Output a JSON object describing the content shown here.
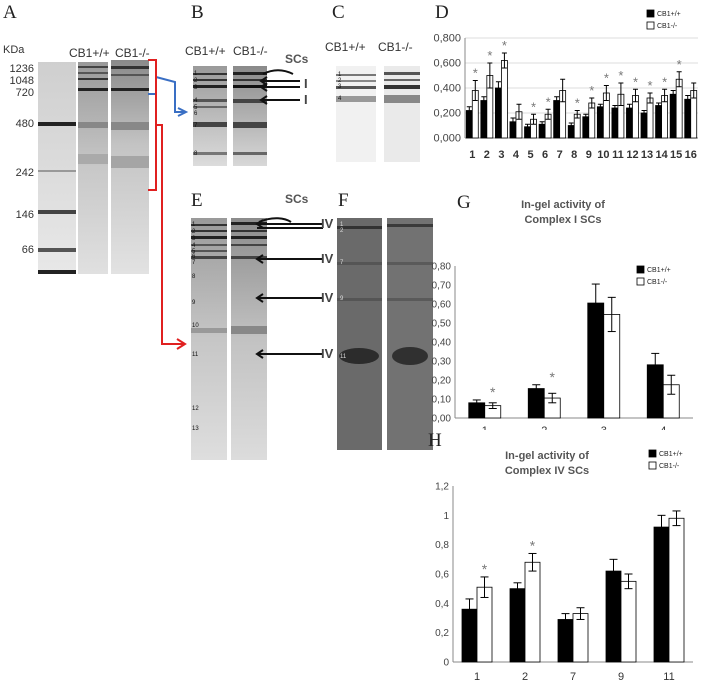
{
  "panels": {
    "A": {
      "label": "A",
      "unit": "KDa",
      "markers": [
        "1236",
        "1048",
        "720",
        "480",
        "242",
        "146",
        "66"
      ],
      "lane_headers": [
        "CB1+/+",
        "CB1-/-"
      ]
    },
    "B": {
      "label": "B",
      "lane_headers": [
        "CB1+/+",
        "CB1-/-"
      ],
      "scs_label": "SCs",
      "arrow_labels": [
        "I",
        "I"
      ],
      "band_numbers": [
        "1",
        "2",
        "3",
        "4",
        "5",
        "6",
        "7",
        "8"
      ]
    },
    "C": {
      "label": "C",
      "lane_headers": [
        "CB1+/+",
        "CB1-/-"
      ],
      "band_numbers": [
        "1",
        "2",
        "3",
        "4"
      ]
    },
    "E": {
      "label": "E",
      "scs_label": "SCs",
      "arrow_labels": [
        "IV",
        "IV",
        "IV",
        "IV"
      ],
      "band_numbers": [
        "1",
        "2",
        "3",
        "4",
        "5",
        "6",
        "7",
        "8",
        "9",
        "10",
        "11",
        "12",
        "13"
      ]
    },
    "F": {
      "label": "F",
      "band_numbers": [
        "1",
        "2",
        "7",
        "9",
        "11"
      ]
    }
  },
  "colors": {
    "bar_wt": "#000000",
    "bar_ko": "#ffffff",
    "axis": "#888888",
    "grid": "#dddddd",
    "tick_text": "#444444",
    "bracket_blue": "#3a6fc4",
    "bracket_red": "#e02020"
  },
  "chart_data": [
    {
      "id": "D",
      "label": "D",
      "type": "bar",
      "title": "",
      "categories": [
        "1",
        "2",
        "3",
        "4",
        "5",
        "6",
        "7",
        "8",
        "9",
        "10",
        "11",
        "12",
        "13",
        "14",
        "15",
        "16"
      ],
      "series": [
        {
          "name": "CB1+/+",
          "values": [
            0.22,
            0.3,
            0.4,
            0.13,
            0.09,
            0.11,
            0.3,
            0.1,
            0.17,
            0.25,
            0.24,
            0.24,
            0.2,
            0.26,
            0.35,
            0.31
          ],
          "errors": [
            0.03,
            0.03,
            0.05,
            0.03,
            0.02,
            0.02,
            0.03,
            0.02,
            0.02,
            0.02,
            0.02,
            0.03,
            0.02,
            0.02,
            0.03,
            0.03
          ]
        },
        {
          "name": "CB1-/-",
          "values": [
            0.38,
            0.5,
            0.62,
            0.21,
            0.15,
            0.19,
            0.38,
            0.19,
            0.28,
            0.36,
            0.35,
            0.34,
            0.32,
            0.34,
            0.47,
            0.38
          ],
          "errors": [
            0.08,
            0.1,
            0.06,
            0.06,
            0.04,
            0.04,
            0.09,
            0.03,
            0.04,
            0.06,
            0.09,
            0.05,
            0.04,
            0.05,
            0.06,
            0.06
          ]
        }
      ],
      "significant": [
        "1",
        "2",
        "3",
        "5",
        "6",
        "8",
        "9",
        "10",
        "11",
        "12",
        "13",
        "14",
        "15"
      ],
      "tick_labels": [
        "0,000",
        "0,200",
        "0,400",
        "0,600",
        "0,800"
      ],
      "ylim": [
        0,
        0.8
      ],
      "legend": "top-right"
    },
    {
      "id": "G",
      "label": "G",
      "type": "bar",
      "title": "In-gel activity of Complex I SCs",
      "title_lines": [
        "In-gel activity of",
        "Complex I SCs"
      ],
      "categories": [
        "1",
        "2",
        "3",
        "4"
      ],
      "series": [
        {
          "name": "CB1+/+",
          "values": [
            0.08,
            0.155,
            0.605,
            0.28
          ],
          "errors": [
            0.015,
            0.02,
            0.1,
            0.06
          ]
        },
        {
          "name": "CB1-/-",
          "values": [
            0.065,
            0.105,
            0.545,
            0.175
          ],
          "errors": [
            0.015,
            0.025,
            0.09,
            0.05
          ]
        }
      ],
      "significant": [
        "1",
        "2"
      ],
      "tick_labels": [
        "0,00",
        "0,10",
        "0,20",
        "0,30",
        "0,40",
        "0,50",
        "0,60",
        "0,70",
        "0,80"
      ],
      "ylim": [
        0,
        0.8
      ],
      "legend": "top-right"
    },
    {
      "id": "H",
      "label": "H",
      "type": "bar",
      "title": "In-gel activity of Complex IV SCs",
      "title_lines": [
        "In-gel activity of",
        "Complex IV SCs"
      ],
      "categories": [
        "1",
        "2",
        "7",
        "9",
        "11"
      ],
      "series": [
        {
          "name": "CB1+/+",
          "values": [
            0.36,
            0.5,
            0.29,
            0.62,
            0.92
          ],
          "errors": [
            0.07,
            0.04,
            0.04,
            0.08,
            0.08
          ]
        },
        {
          "name": "CB1-/-",
          "values": [
            0.51,
            0.68,
            0.33,
            0.55,
            0.98
          ],
          "errors": [
            0.07,
            0.06,
            0.04,
            0.05,
            0.05
          ]
        }
      ],
      "significant": [
        "1",
        "2"
      ],
      "tick_labels": [
        "0",
        "0,2",
        "0,4",
        "0,6",
        "0,8",
        "1",
        "1,2"
      ],
      "ylim": [
        0,
        1.2
      ],
      "legend": "top-right"
    }
  ]
}
